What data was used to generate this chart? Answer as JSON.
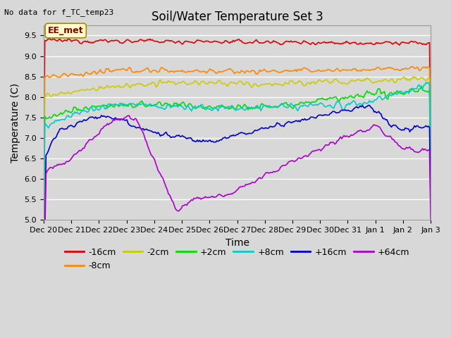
{
  "title": "Soil/Water Temperature Set 3",
  "xlabel": "Time",
  "ylabel": "Temperature (C)",
  "annotation": "No data for f_TC_temp23",
  "ee_met_label": "EE_met",
  "ylim": [
    5.0,
    9.75
  ],
  "yticks": [
    5.0,
    5.5,
    6.0,
    6.5,
    7.0,
    7.5,
    8.0,
    8.5,
    9.0,
    9.5
  ],
  "series_labels": [
    "-16cm",
    "-8cm",
    "-2cm",
    "+2cm",
    "+8cm",
    "+16cm",
    "+64cm"
  ],
  "series_colors": [
    "#dd0000",
    "#ff8800",
    "#cccc00",
    "#00dd00",
    "#00cccc",
    "#0000cc",
    "#aa00cc"
  ],
  "n_points": 336,
  "background_color": "#d8d8d8",
  "plot_bg_color": "#d8d8d8",
  "grid_color": "#ffffff",
  "title_fontsize": 12,
  "label_fontsize": 10,
  "tick_fontsize": 8,
  "legend_fontsize": 9
}
